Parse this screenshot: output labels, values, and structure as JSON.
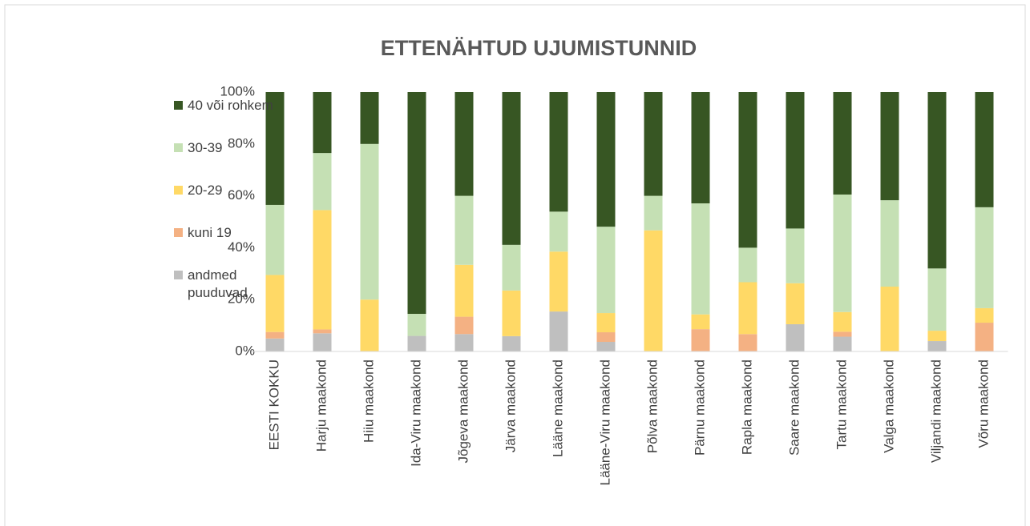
{
  "chart_data": {
    "type": "stacked_bar",
    "title": "ETTENÄHTUD UJUMISTUNNID",
    "categories": [
      "EESTI KOKKU",
      "Harju maakond",
      "Hiiu maakond",
      "Ida-Viru maakond",
      "Jõgeva maakond",
      "Järva maakond",
      "Lääne maakond",
      "Lääne-Viru maakond",
      "Põlva maakond",
      "Pärnu maakond",
      "Rapla maakond",
      "Saare maakond",
      "Tartu maakond",
      "Valga maakond",
      "Viljandi maakond",
      "Võru maakond"
    ],
    "series": [
      {
        "name": "andmed puuduvad",
        "color": "#bfbfbf",
        "values": [
          5,
          7,
          0,
          6,
          6.7,
          5.9,
          15.4,
          3.7,
          0,
          0,
          0,
          10.5,
          5.7,
          0,
          4,
          0
        ]
      },
      {
        "name": "kuni 19",
        "color": "#f4b183",
        "values": [
          2.5,
          1.5,
          0,
          0,
          6.7,
          0,
          0,
          3.7,
          0,
          8.6,
          6.7,
          0,
          1.9,
          0,
          0,
          11.1
        ]
      },
      {
        "name": "20-29",
        "color": "#ffd966",
        "values": [
          22,
          46,
          20,
          0,
          20,
          17.6,
          23.1,
          7.4,
          46.7,
          5.7,
          20,
          15.8,
          7.6,
          25,
          4,
          5.6
        ]
      },
      {
        "name": "30-39",
        "color": "#c5e0b4",
        "values": [
          27,
          22,
          60,
          8.5,
          26.6,
          17.6,
          15.4,
          33.3,
          13.3,
          42.8,
          13.3,
          21.1,
          45.3,
          33.3,
          24,
          38.9
        ]
      },
      {
        "name": "40 või rohkem",
        "color": "#375623",
        "values": [
          43.5,
          23.5,
          20,
          85.5,
          40,
          58.9,
          46.1,
          51.9,
          40,
          42.9,
          60,
          52.6,
          39.5,
          41.7,
          68,
          44.4
        ]
      }
    ],
    "ylim": [
      0,
      100
    ],
    "yticks": [
      {
        "value": 0,
        "label": "0%"
      },
      {
        "value": 20,
        "label": "20%"
      },
      {
        "value": 40,
        "label": "40%"
      },
      {
        "value": 60,
        "label": "60%"
      },
      {
        "value": 80,
        "label": "80%"
      },
      {
        "value": 100,
        "label": "100%"
      }
    ],
    "grid": false,
    "legend": "left"
  }
}
